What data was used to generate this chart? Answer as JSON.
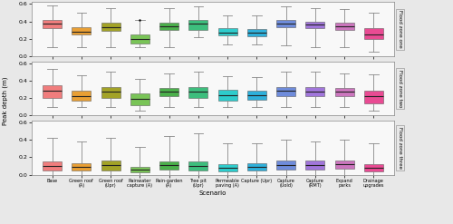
{
  "scenarios": [
    "Base",
    "Green roof\n(A)",
    "Green roof\n(Upr)",
    "Rainwater\ncapture (A)",
    "Rain-garden\n(A)",
    "Tree pit\n(Upr)",
    "Permeable\npaving (A)",
    "Capture (Upr)",
    "Capture\n(Uold)",
    "Capture\n(RMT)",
    "Expand\nparks",
    "Drainage\nupgrades"
  ],
  "colors": [
    "#F07070",
    "#E8961E",
    "#9A9A10",
    "#6BBF45",
    "#38A838",
    "#28B870",
    "#18C8C8",
    "#18A8D8",
    "#6080D8",
    "#9868D8",
    "#C868B8",
    "#E83888"
  ],
  "flood_zone_labels": [
    "Flood zone one",
    "Flood zone two",
    "Flood zone three"
  ],
  "zone1": {
    "whislo": [
      0.1,
      0.1,
      0.1,
      0.1,
      0.1,
      0.22,
      0.13,
      0.13,
      0.12,
      0.1,
      0.1,
      0.05
    ],
    "q1": [
      0.32,
      0.25,
      0.29,
      0.14,
      0.3,
      0.3,
      0.24,
      0.23,
      0.33,
      0.32,
      0.3,
      0.2
    ],
    "med": [
      0.37,
      0.28,
      0.33,
      0.2,
      0.34,
      0.37,
      0.27,
      0.27,
      0.37,
      0.36,
      0.34,
      0.25
    ],
    "q3": [
      0.42,
      0.33,
      0.38,
      0.25,
      0.38,
      0.42,
      0.32,
      0.31,
      0.42,
      0.4,
      0.39,
      0.32
    ],
    "whishi": [
      0.58,
      0.5,
      0.55,
      0.42,
      0.55,
      0.57,
      0.47,
      0.47,
      0.57,
      0.55,
      0.54,
      0.5
    ],
    "fliers_x": [
      4
    ],
    "fliers_y": [
      0.415
    ]
  },
  "zone2": {
    "whislo": [
      0.1,
      0.1,
      0.1,
      0.05,
      0.1,
      0.1,
      0.1,
      0.1,
      0.1,
      0.1,
      0.1,
      0.05
    ],
    "q1": [
      0.2,
      0.17,
      0.2,
      0.12,
      0.22,
      0.2,
      0.17,
      0.18,
      0.22,
      0.22,
      0.22,
      0.14
    ],
    "med": [
      0.28,
      0.22,
      0.27,
      0.19,
      0.27,
      0.27,
      0.23,
      0.23,
      0.28,
      0.27,
      0.27,
      0.22
    ],
    "q3": [
      0.35,
      0.28,
      0.33,
      0.25,
      0.32,
      0.33,
      0.29,
      0.28,
      0.33,
      0.33,
      0.32,
      0.28
    ],
    "whishi": [
      0.53,
      0.46,
      0.5,
      0.42,
      0.48,
      0.5,
      0.45,
      0.44,
      0.5,
      0.5,
      0.48,
      0.47
    ]
  },
  "zone3": {
    "whislo": [
      0.0,
      0.0,
      0.0,
      0.0,
      0.0,
      0.0,
      0.0,
      0.0,
      0.0,
      0.0,
      0.0,
      0.0
    ],
    "q1": [
      0.05,
      0.05,
      0.05,
      0.03,
      0.06,
      0.05,
      0.04,
      0.05,
      0.06,
      0.06,
      0.07,
      0.04
    ],
    "med": [
      0.1,
      0.09,
      0.11,
      0.06,
      0.11,
      0.1,
      0.08,
      0.09,
      0.11,
      0.11,
      0.12,
      0.08
    ],
    "q3": [
      0.15,
      0.13,
      0.16,
      0.09,
      0.15,
      0.15,
      0.12,
      0.13,
      0.16,
      0.16,
      0.16,
      0.12
    ],
    "whishi": [
      0.42,
      0.38,
      0.42,
      0.32,
      0.45,
      0.48,
      0.36,
      0.36,
      0.4,
      0.38,
      0.4,
      0.36
    ]
  },
  "ylabel": "Peak depth (m)",
  "xlabel": "Scenario",
  "ylim": [
    0.0,
    0.62
  ],
  "yticks": [
    0.0,
    0.2,
    0.4,
    0.6
  ],
  "background_color": "#E8E8E8",
  "panel_bg": "#F8F8F8"
}
